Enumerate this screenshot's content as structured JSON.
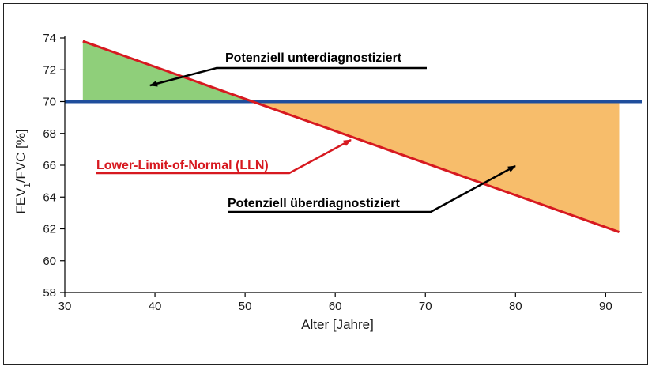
{
  "chart_data": {
    "type": "area",
    "xlabel": "Alter  [Jahre]",
    "ylabel": {
      "prefix": "FEV",
      "subscript": "1",
      "suffix": "/FVC [%]"
    },
    "xlim": [
      30,
      94
    ],
    "ylim": [
      58,
      74
    ],
    "xticks": [
      30,
      40,
      50,
      60,
      70,
      80,
      90
    ],
    "yticks": [
      58,
      60,
      62,
      64,
      66,
      68,
      70,
      72,
      74
    ],
    "fixed_ratio": {
      "value": 70,
      "color": "#1f4e9c"
    },
    "lln": {
      "name": "Lower-Limit-of-Normal (LLN)",
      "color": "#d71920",
      "x": [
        32,
        91.5
      ],
      "y": [
        73.8,
        61.8
      ]
    },
    "regions": [
      {
        "label": "Potenziell unterdiagnostiziert",
        "color": "#8fcf7a"
      },
      {
        "label": "Potenziell überdiagnostiziert",
        "color": "#f7bd6b"
      }
    ],
    "grid": false
  }
}
